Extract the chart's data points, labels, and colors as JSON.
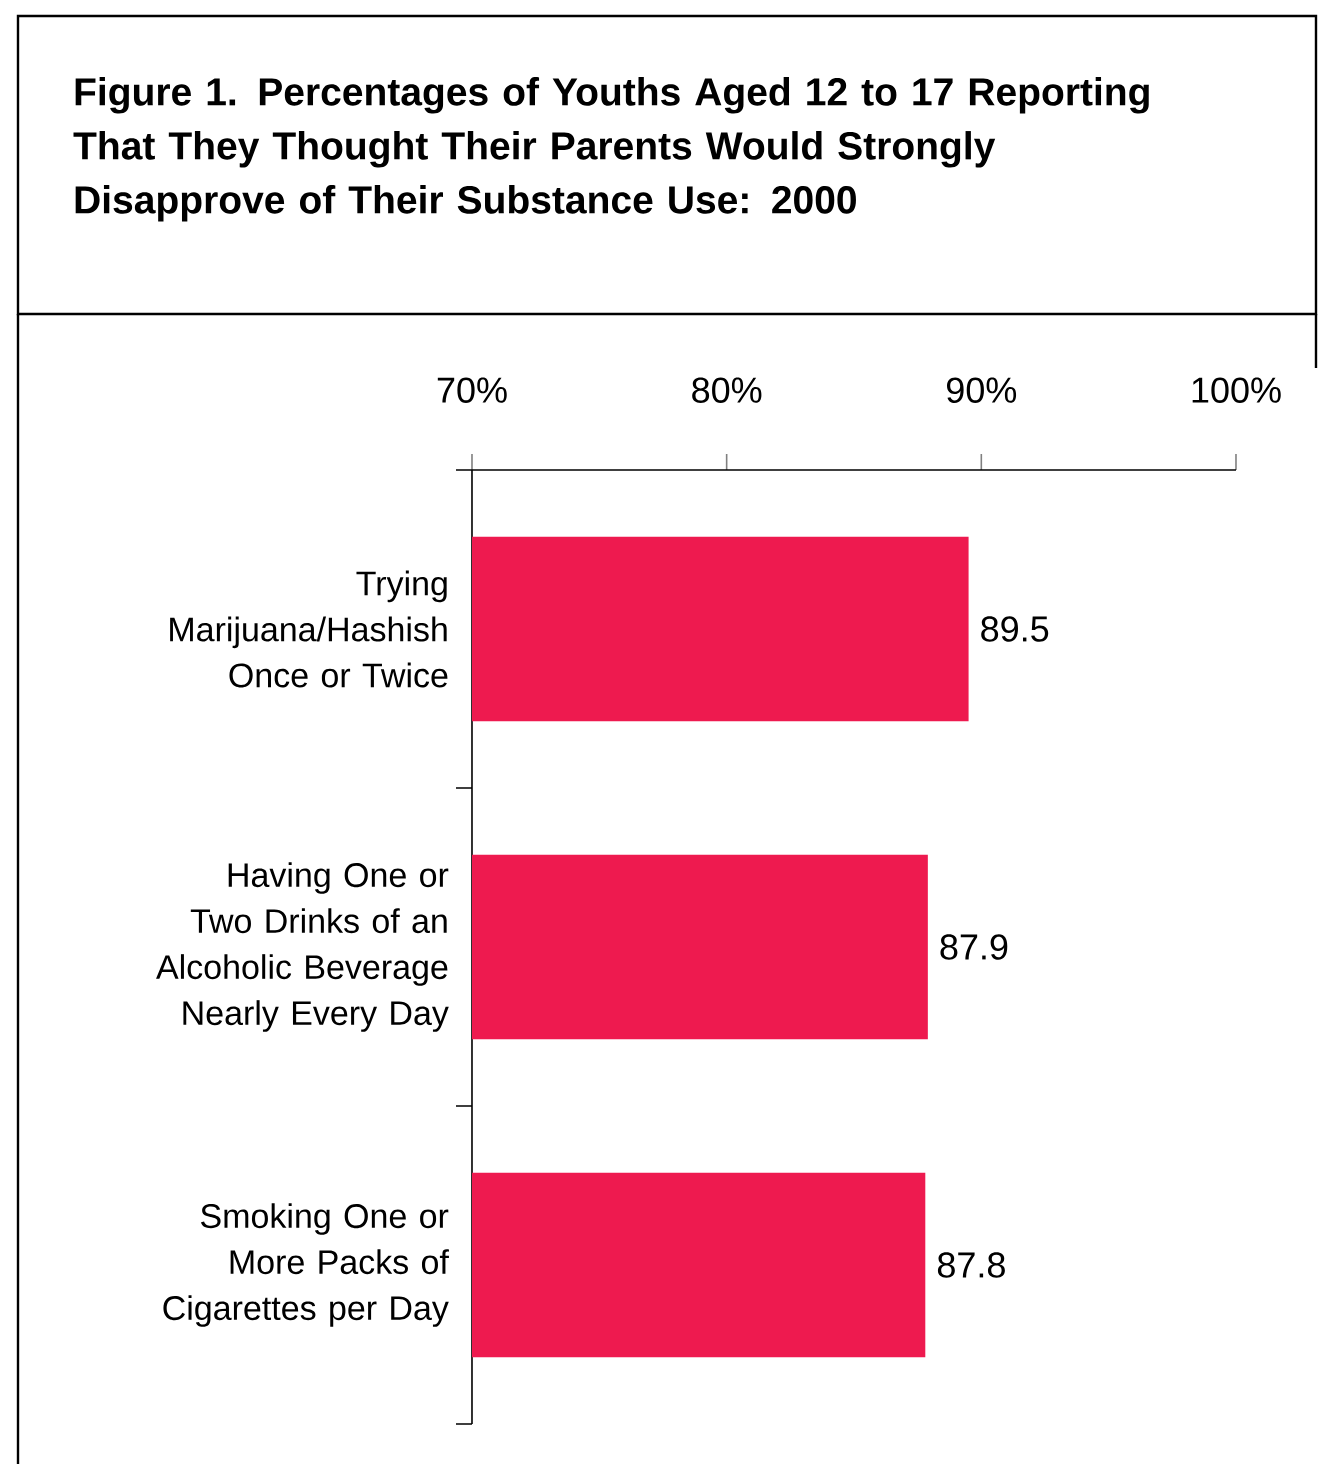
{
  "chart_data": {
    "type": "bar",
    "orientation": "horizontal",
    "title": "Figure 1. Percentages of Youths Aged 12 to 17 Reporting That They Thought Their Parents Would Strongly Disapprove of Their Substance Use: 2000",
    "categories": [
      "Trying Marijuana/Hashish Once or Twice",
      "Having One or Two Drinks of an Alcoholic Beverage Nearly Every Day",
      "Smoking One or More Packs of Cigarettes per Day"
    ],
    "values": [
      89.5,
      87.9,
      87.8
    ],
    "color": "#ee1a4f",
    "xlim": [
      70,
      100
    ],
    "xticks": [
      {
        "value": 70,
        "label": "70%"
      },
      {
        "value": 80,
        "label": "80%"
      },
      {
        "value": 90,
        "label": "90%"
      },
      {
        "value": 100,
        "label": "100%"
      }
    ],
    "data_labels": true
  }
}
